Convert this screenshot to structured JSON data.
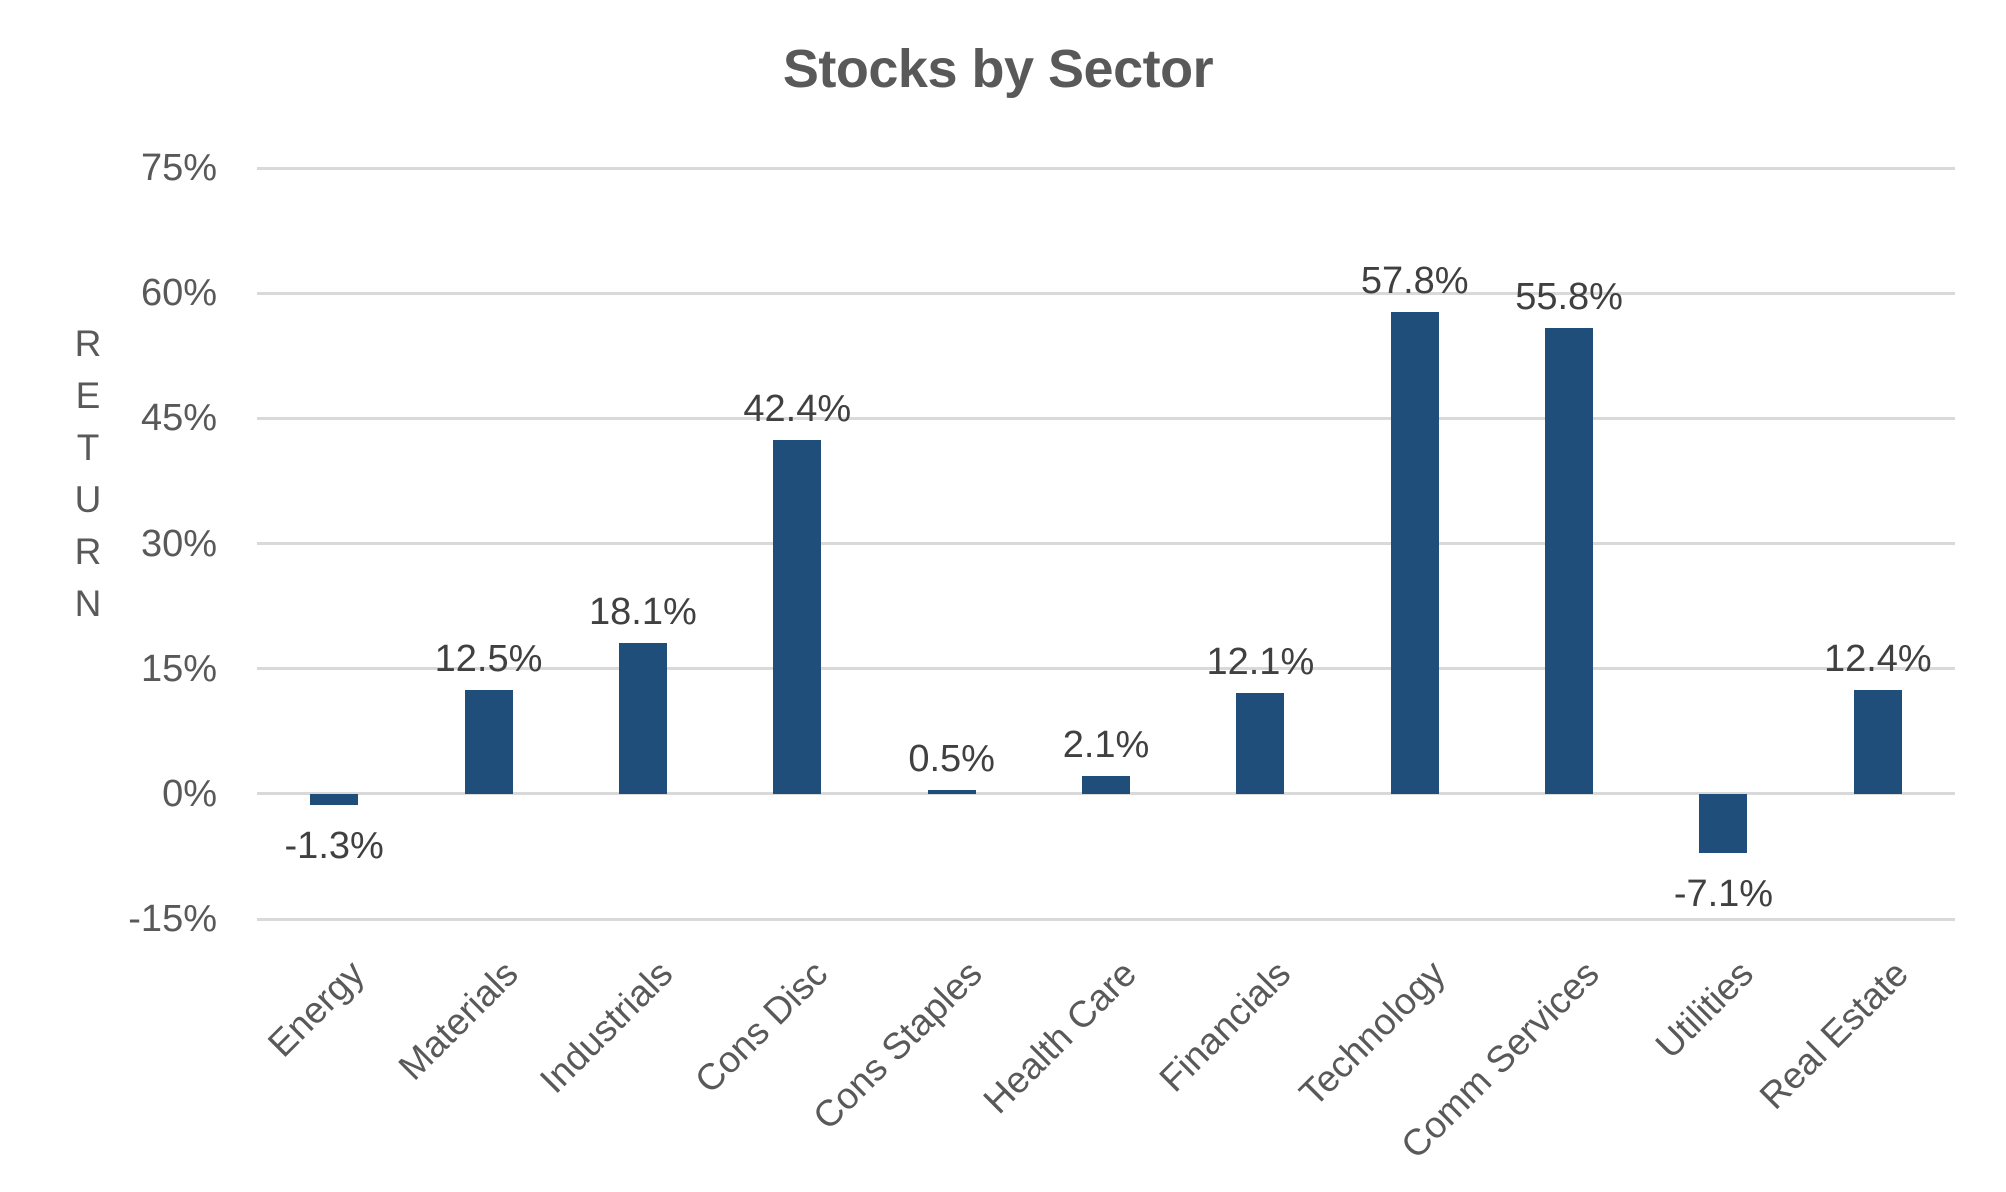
{
  "chart_data": {
    "type": "bar",
    "title": "Stocks by Sector",
    "ylabel": "RETURN",
    "xlabel": "",
    "categories": [
      "Energy",
      "Materials",
      "Industrials",
      "Cons Disc",
      "Cons Staples",
      "Health Care",
      "Financials",
      "Technology",
      "Comm Services",
      "Utilities",
      "Real Estate"
    ],
    "values": [
      -1.3,
      12.5,
      18.1,
      42.4,
      0.5,
      2.1,
      12.1,
      57.8,
      55.8,
      -7.1,
      12.4
    ],
    "data_labels": [
      "-1.3%",
      "12.5%",
      "18.1%",
      "42.4%",
      "0.5%",
      "2.1%",
      "12.1%",
      "57.8%",
      "55.8%",
      "-7.1%",
      "12.4%"
    ],
    "ylim": [
      -15,
      75
    ],
    "ytick_step": 15,
    "ytick_labels": [
      "75%",
      "60%",
      "45%",
      "30%",
      "15%",
      "0%",
      "-15%"
    ],
    "grid": true,
    "legend": "none",
    "colors": {
      "bar": "#1F4E7A",
      "gridline": "#D9D9D9",
      "axis_text": "#595959",
      "title_text": "#595959",
      "data_label_text": "#404040"
    }
  }
}
